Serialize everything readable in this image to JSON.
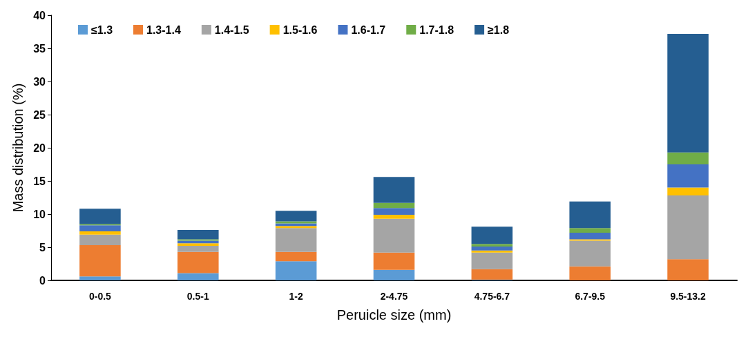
{
  "chart_data": {
    "type": "bar",
    "stacked": true,
    "xlabel": "Peruicle size (mm)",
    "ylabel": "Mass distribution (%)",
    "categories": [
      "0-0.5",
      "0.5-1",
      "1-2",
      "2-4.75",
      "4.75-6.7",
      "6.7-9.5",
      "9.5-13.2"
    ],
    "series": [
      {
        "name": "≤1.3",
        "color": "#5b9bd5",
        "values": [
          0.6,
          1.1,
          2.9,
          1.6,
          0.1,
          0,
          0
        ]
      },
      {
        "name": "1.3-1.4",
        "color": "#ed7d31",
        "values": [
          4.7,
          3.2,
          1.4,
          2.6,
          1.6,
          2.1,
          3.2
        ]
      },
      {
        "name": "1.4-1.5",
        "color": "#a5a5a5",
        "values": [
          1.6,
          0.9,
          3.6,
          5.1,
          2.5,
          3.9,
          9.6
        ]
      },
      {
        "name": "1.5-1.6",
        "color": "#ffc000",
        "values": [
          0.5,
          0.4,
          0.3,
          0.6,
          0.3,
          0.2,
          1.2
        ]
      },
      {
        "name": "1.6-1.7",
        "color": "#4472c4",
        "values": [
          0.9,
          0.4,
          0.4,
          1.0,
          0.6,
          1.0,
          3.5
        ]
      },
      {
        "name": "1.7-1.8",
        "color": "#70ad47",
        "values": [
          0.2,
          0.2,
          0.3,
          0.8,
          0.4,
          0.7,
          1.8
        ]
      },
      {
        "name": "≥1.8",
        "color": "#255e91",
        "values": [
          2.3,
          1.4,
          1.6,
          3.9,
          2.6,
          4.0,
          17.9
        ]
      }
    ],
    "ylim": [
      0,
      40
    ],
    "yticks": [
      0,
      5,
      10,
      15,
      20,
      25,
      30,
      35,
      40
    ],
    "grid": false,
    "legend": "top left"
  }
}
